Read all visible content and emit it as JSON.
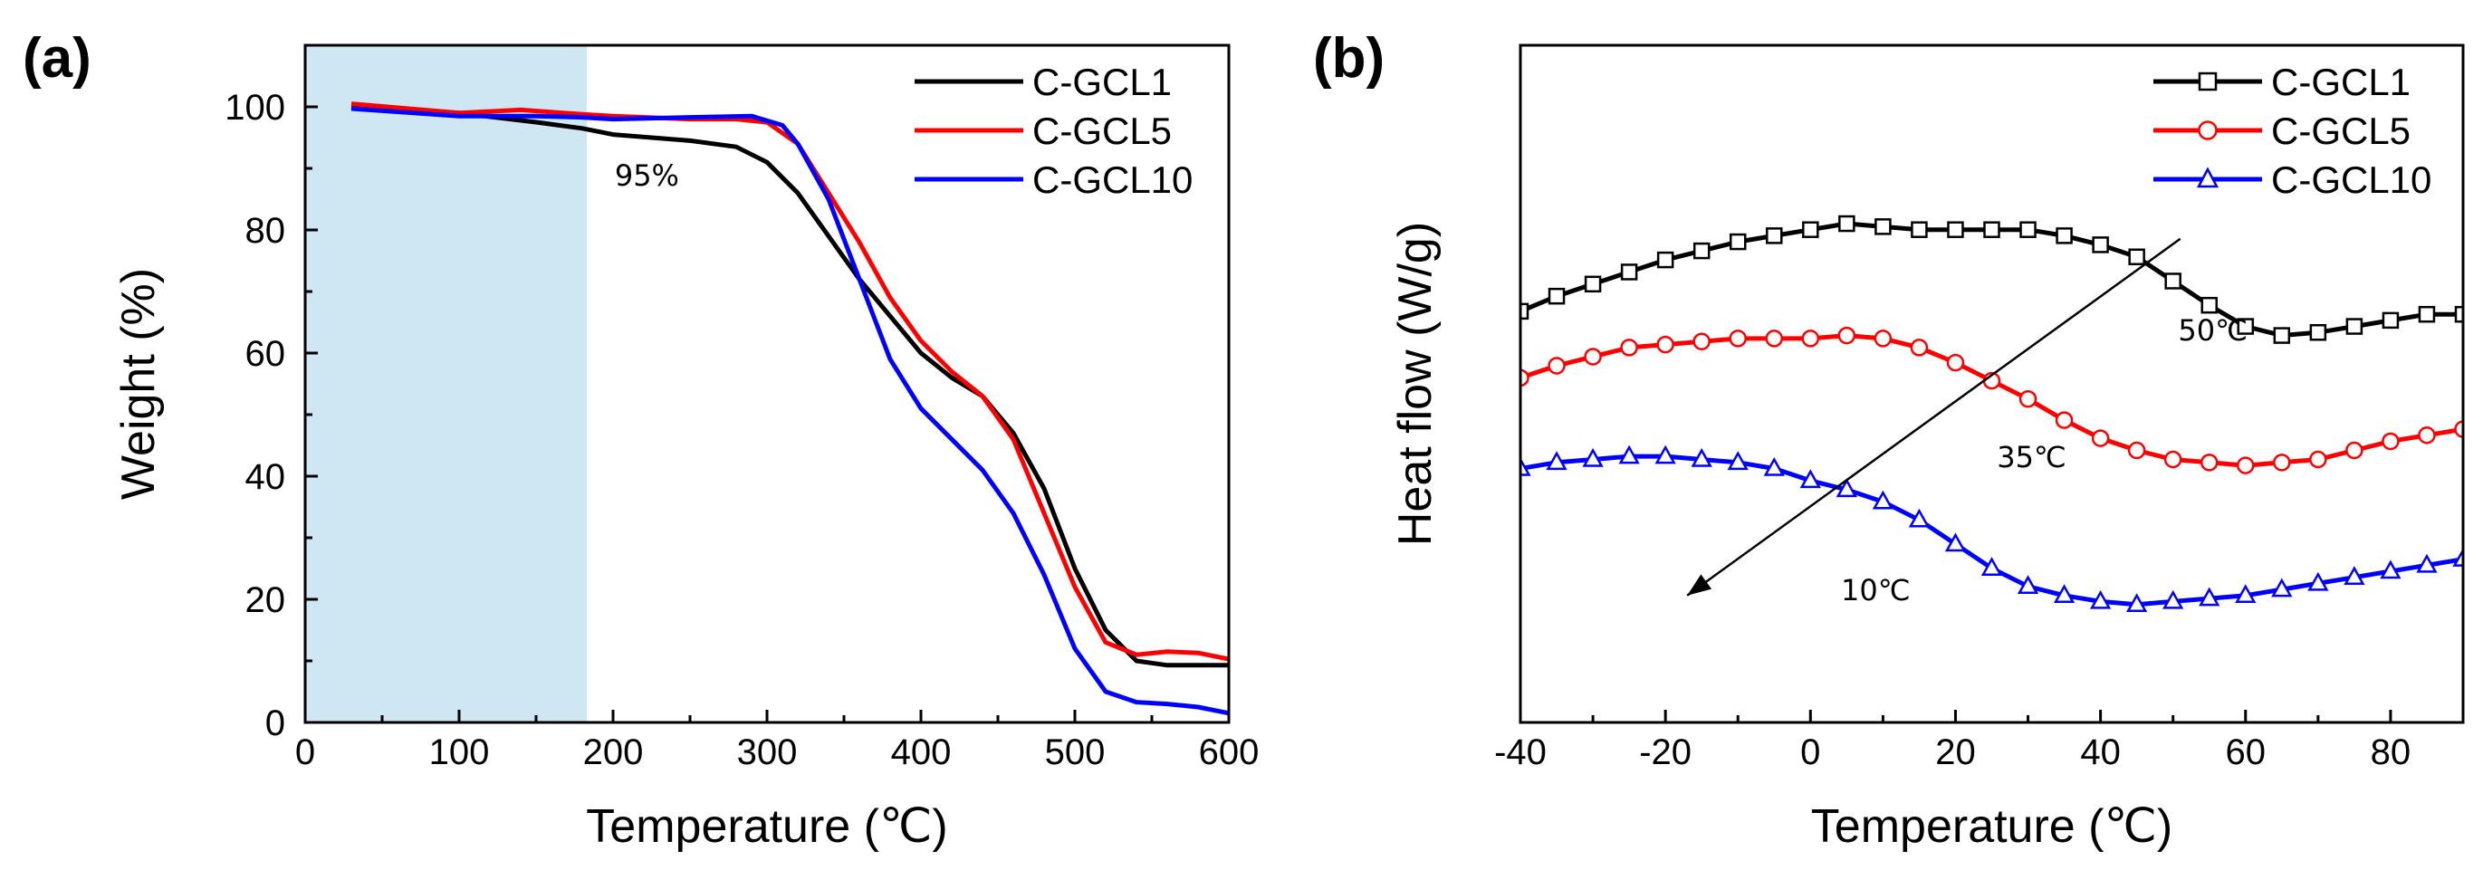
{
  "chart_data": [
    {
      "panel_label": "(a)",
      "type": "line",
      "xlabel": "Temperature (℃)",
      "ylabel": "Weight (%)",
      "xlim": [
        0,
        600
      ],
      "ylim": [
        0,
        110
      ],
      "xticks": [
        0,
        100,
        200,
        300,
        400,
        500,
        600
      ],
      "yticks": [
        0,
        20,
        40,
        60,
        80,
        100
      ],
      "shaded_range": {
        "x": [
          0,
          183
        ],
        "color": "#cfe6f3"
      },
      "annotation": {
        "text": "95%",
        "x": 222,
        "y": 89
      },
      "legend_position": "top-right",
      "series": [
        {
          "name": "C-GCL1",
          "color": "#000000",
          "x": [
            30,
            100,
            150,
            180,
            200,
            250,
            280,
            300,
            320,
            340,
            360,
            380,
            400,
            420,
            440,
            460,
            480,
            500,
            520,
            540,
            560,
            580,
            600
          ],
          "y": [
            100,
            99,
            97.5,
            96.5,
            95.5,
            94.5,
            93.5,
            91,
            86,
            79,
            72,
            66,
            60,
            56,
            53,
            47,
            38,
            25,
            15,
            10,
            9.3,
            9.3,
            9.3
          ]
        },
        {
          "name": "C-GCL5",
          "color": "#ff0000",
          "x": [
            30,
            100,
            140,
            180,
            200,
            250,
            280,
            300,
            320,
            340,
            360,
            380,
            400,
            420,
            440,
            460,
            480,
            500,
            520,
            540,
            560,
            580,
            600
          ],
          "y": [
            100.5,
            99,
            99.5,
            98.8,
            98.5,
            98,
            98,
            97.5,
            94,
            86,
            78,
            69,
            62,
            57,
            53,
            46,
            34,
            22,
            13,
            11,
            11.5,
            11.3,
            10.3
          ]
        },
        {
          "name": "C-GCL10",
          "color": "#0000ff",
          "x": [
            30,
            100,
            150,
            180,
            200,
            250,
            290,
            310,
            320,
            340,
            360,
            380,
            400,
            420,
            440,
            460,
            480,
            500,
            520,
            540,
            560,
            580,
            600
          ],
          "y": [
            99.7,
            98.5,
            98.5,
            98.3,
            98,
            98.3,
            98.5,
            97,
            94,
            85,
            72,
            59,
            51,
            46,
            41,
            34,
            24,
            12,
            5,
            3.3,
            3,
            2.5,
            1.5
          ]
        }
      ]
    },
    {
      "panel_label": "(b)",
      "type": "line",
      "xlabel": "Temperature (℃)",
      "ylabel": "Heat flow (W/g)",
      "xlim": [
        -40,
        90
      ],
      "ylim": [
        0,
        112
      ],
      "xticks": [
        -40,
        -20,
        0,
        20,
        40,
        60,
        80
      ],
      "yticks": [],
      "legend_position": "top-right",
      "arrow": {
        "from": [
          51,
          80
        ],
        "to": [
          -17,
          21
        ]
      },
      "annotations": [
        {
          "text": "50℃",
          "x": 55.5,
          "y": 65
        },
        {
          "text": "35℃",
          "x": 30.5,
          "y": 44
        },
        {
          "text": "10℃",
          "x": 9,
          "y": 22
        }
      ],
      "series": [
        {
          "name": "C-GCL1",
          "color": "#000000",
          "marker": "square",
          "x": [
            -40,
            -35,
            -30,
            -25,
            -20,
            -15,
            -10,
            -5,
            0,
            5,
            10,
            15,
            20,
            25,
            30,
            35,
            40,
            45,
            50,
            55,
            60,
            65,
            70,
            75,
            80,
            85,
            90
          ],
          "y": [
            68,
            70.5,
            72.5,
            74.5,
            76.5,
            78,
            79.5,
            80.5,
            81.5,
            82.5,
            82,
            81.5,
            81.5,
            81.5,
            81.5,
            80.5,
            79,
            77,
            73,
            69,
            65.5,
            64,
            64.5,
            65.5,
            66.5,
            67.5,
            67.5
          ]
        },
        {
          "name": "C-GCL5",
          "color": "#ff0000",
          "marker": "circle",
          "x": [
            -40,
            -35,
            -30,
            -25,
            -20,
            -15,
            -10,
            -5,
            0,
            5,
            10,
            15,
            20,
            25,
            30,
            35,
            40,
            45,
            50,
            55,
            60,
            65,
            70,
            75,
            80,
            85,
            90
          ],
          "y": [
            57,
            59,
            60.5,
            62,
            62.5,
            63,
            63.5,
            63.5,
            63.5,
            64,
            63.5,
            62,
            59.5,
            56.5,
            53.5,
            50,
            47,
            45,
            43.5,
            43,
            42.5,
            43,
            43.5,
            45,
            46.5,
            47.5,
            48.5
          ]
        },
        {
          "name": "C-GCL10",
          "color": "#0000ff",
          "marker": "triangle",
          "x": [
            -40,
            -35,
            -30,
            -25,
            -20,
            -15,
            -10,
            -5,
            0,
            5,
            10,
            15,
            20,
            25,
            30,
            35,
            40,
            45,
            50,
            55,
            60,
            65,
            70,
            75,
            80,
            85,
            90
          ],
          "y": [
            42,
            43,
            43.5,
            44,
            44,
            43.5,
            43,
            42,
            40,
            38.5,
            36.5,
            33.5,
            29.5,
            25.5,
            22.5,
            21,
            20,
            19.5,
            20,
            20.5,
            21,
            22,
            23,
            24,
            25,
            26,
            27
          ]
        }
      ]
    }
  ]
}
